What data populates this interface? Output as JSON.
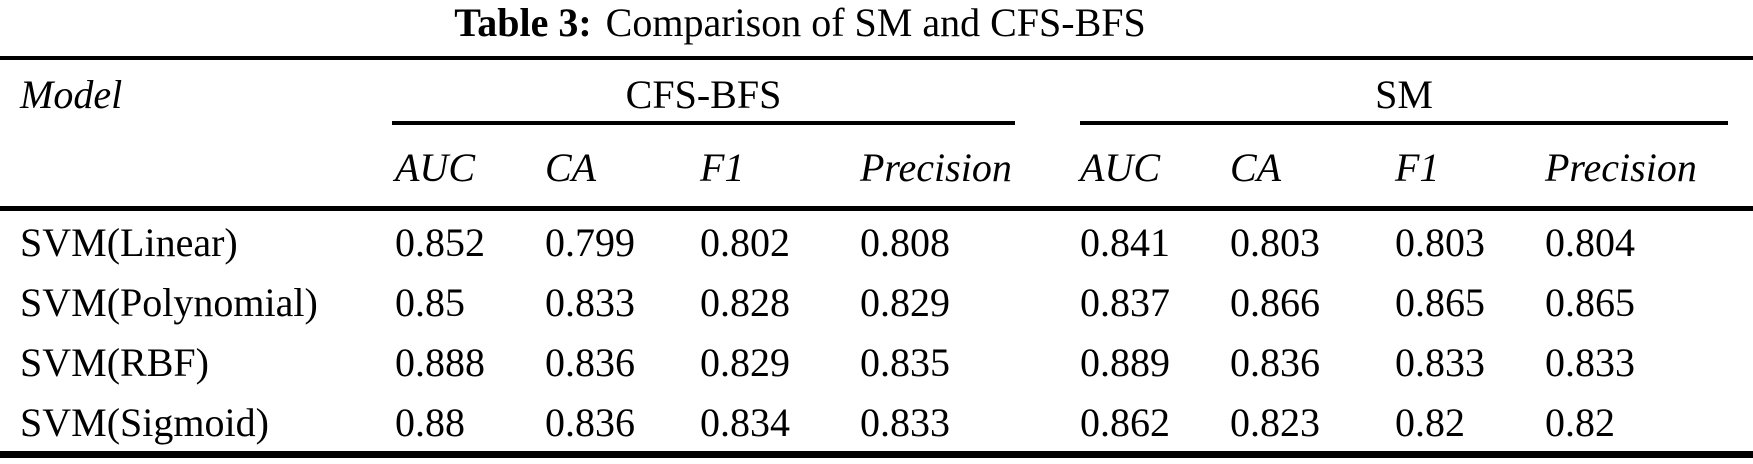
{
  "colors": {
    "text": "#000000",
    "background": "#ffffff"
  },
  "caption": {
    "label": "Table 3:",
    "text": "Comparison of SM and CFS-BFS"
  },
  "table": {
    "model_header": "Model",
    "groups": [
      {
        "name": "CFS-BFS"
      },
      {
        "name": "SM"
      }
    ],
    "metrics": [
      "AUC",
      "CA",
      "F1",
      "Precision"
    ],
    "rows": [
      {
        "model": "SVM(Linear)",
        "cfs_bfs": [
          "0.852",
          "0.799",
          "0.802",
          "0.808"
        ],
        "sm": [
          "0.841",
          "0.803",
          "0.803",
          "0.804"
        ]
      },
      {
        "model": "SVM(Polynomial)",
        "cfs_bfs": [
          "0.85",
          "0.833",
          "0.828",
          "0.829"
        ],
        "sm": [
          "0.837",
          "0.866",
          "0.865",
          "0.865"
        ]
      },
      {
        "model": "SVM(RBF)",
        "cfs_bfs": [
          "0.888",
          "0.836",
          "0.829",
          "0.835"
        ],
        "sm": [
          "0.889",
          "0.836",
          "0.833",
          "0.833"
        ]
      },
      {
        "model": "SVM(Sigmoid)",
        "cfs_bfs": [
          "0.88",
          "0.836",
          "0.834",
          "0.833"
        ],
        "sm": [
          "0.862",
          "0.823",
          "0.82",
          "0.82"
        ]
      }
    ]
  },
  "chart_data": {
    "type": "table",
    "title": "Table 3: Comparison of SM and CFS-BFS",
    "column_groups": [
      "CFS-BFS",
      "SM"
    ],
    "columns": [
      "Model",
      "CFS-BFS AUC",
      "CFS-BFS CA",
      "CFS-BFS F1",
      "CFS-BFS Precision",
      "SM AUC",
      "SM CA",
      "SM F1",
      "SM Precision"
    ],
    "rows": [
      [
        "SVM(Linear)",
        0.852,
        0.799,
        0.802,
        0.808,
        0.841,
        0.803,
        0.803,
        0.804
      ],
      [
        "SVM(Polynomial)",
        0.85,
        0.833,
        0.828,
        0.829,
        0.837,
        0.866,
        0.865,
        0.865
      ],
      [
        "SVM(RBF)",
        0.888,
        0.836,
        0.829,
        0.835,
        0.889,
        0.836,
        0.833,
        0.833
      ],
      [
        "SVM(Sigmoid)",
        0.88,
        0.836,
        0.834,
        0.833,
        0.862,
        0.823,
        0.82,
        0.82
      ]
    ]
  }
}
